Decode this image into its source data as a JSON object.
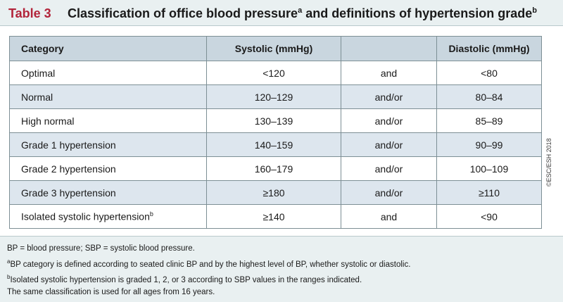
{
  "title": {
    "label": "Table 3",
    "text_main": "Classification of office blood pressure",
    "sup_a": "a",
    "text_rest": " and definitions of hypertension grade",
    "sup_b": "b"
  },
  "table": {
    "headers": {
      "category": "Category",
      "systolic": "Systolic (mmHg)",
      "conjunction": "",
      "diastolic": "Diastolic (mmHg)"
    },
    "rows": [
      {
        "category": "Optimal",
        "sup": "",
        "systolic": "<120",
        "conj": "and",
        "diastolic": "<80"
      },
      {
        "category": "Normal",
        "sup": "",
        "systolic": "120–129",
        "conj": "and/or",
        "diastolic": "80–84"
      },
      {
        "category": "High normal",
        "sup": "",
        "systolic": "130–139",
        "conj": "and/or",
        "diastolic": "85–89"
      },
      {
        "category": "Grade 1 hypertension",
        "sup": "",
        "systolic": "140–159",
        "conj": "and/or",
        "diastolic": "90–99"
      },
      {
        "category": "Grade 2 hypertension",
        "sup": "",
        "systolic": "160–179",
        "conj": "and/or",
        "diastolic": "100–109"
      },
      {
        "category": "Grade 3 hypertension",
        "sup": "",
        "systolic": "≥180",
        "conj": "and/or",
        "diastolic": "≥110"
      },
      {
        "category": "Isolated systolic hypertension",
        "sup": "b",
        "systolic": "≥140",
        "conj": "and",
        "diastolic": "<90"
      }
    ]
  },
  "side_note": "©ESC/ESH 2018",
  "footnotes": {
    "abbrev": "BP = blood pressure; SBP = systolic blood pressure.",
    "note_a_mark": "a",
    "note_a": "BP category is defined according to seated clinic BP and by the highest level of BP, whether systolic or diastolic.",
    "note_b_mark": "b",
    "note_b": "Isolated systolic hypertension is graded 1, 2, or 3 according to SBP values in the ranges indicated.",
    "final": "The same classification is used for all ages from 16 years."
  }
}
